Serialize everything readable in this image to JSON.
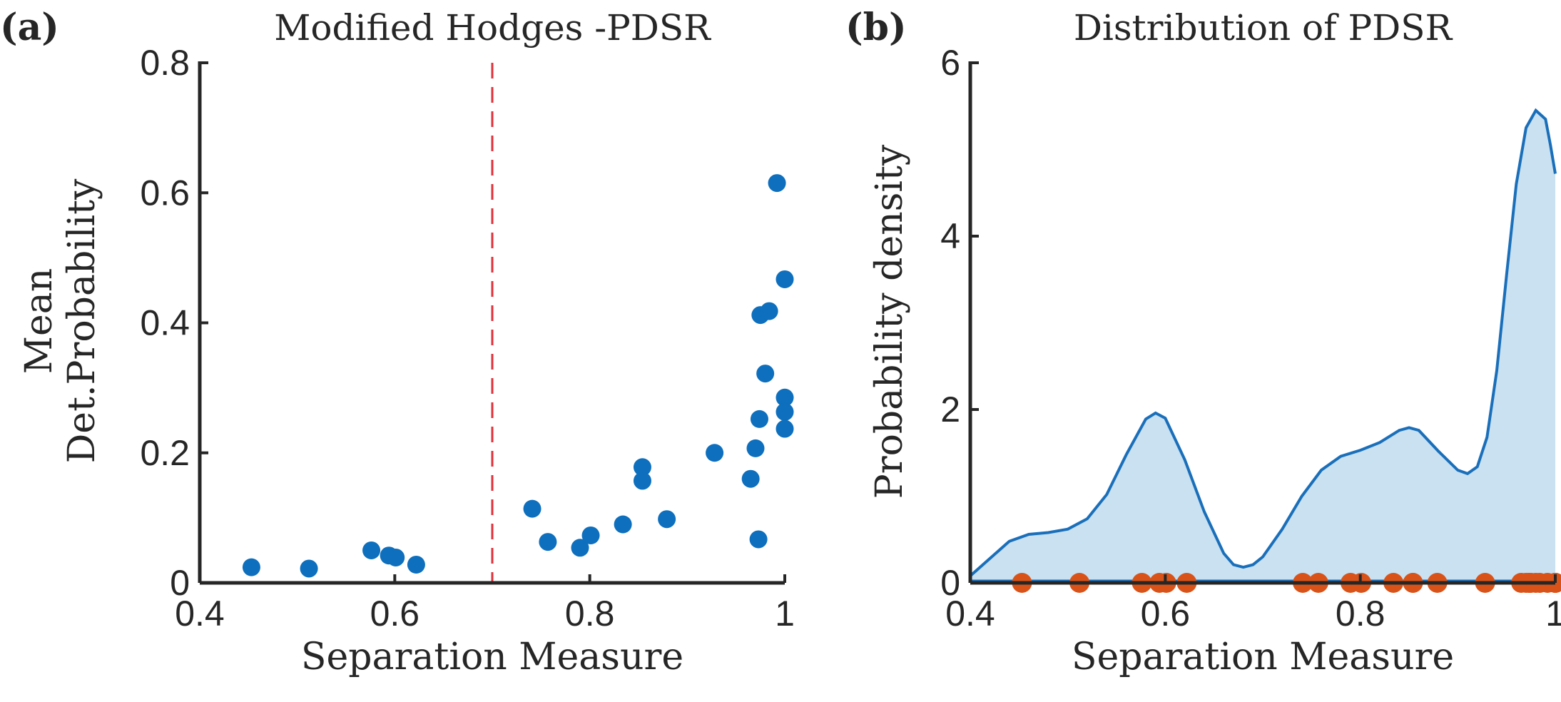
{
  "chart_data": [
    {
      "panel_label": "(a)",
      "type": "scatter",
      "title": "Modified Hodges -PDSR",
      "xlabel": "Separation Measure",
      "ylabel_lines": [
        "Mean",
        "Det.Probability"
      ],
      "xlim": [
        0.4,
        1.0
      ],
      "ylim": [
        0,
        0.8
      ],
      "x_ticks": [
        0.4,
        0.6,
        0.8,
        1.0
      ],
      "y_ticks": [
        0,
        0.2,
        0.4,
        0.6,
        0.8
      ],
      "x_tick_labels": [
        "0.4",
        "0.6",
        "0.8",
        "1"
      ],
      "y_tick_labels": [
        "0",
        "0.2",
        "0.4",
        "0.6",
        "0.8"
      ],
      "grid": false,
      "threshold_line": {
        "x": 0.7,
        "style": "dashed",
        "color": "#e0323a"
      },
      "series": [
        {
          "color": "#0d6fbd",
          "points": [
            [
              0.453,
              0.024
            ],
            [
              0.512,
              0.022
            ],
            [
              0.576,
              0.05
            ],
            [
              0.594,
              0.042
            ],
            [
              0.601,
              0.039
            ],
            [
              0.622,
              0.028
            ],
            [
              0.741,
              0.114
            ],
            [
              0.757,
              0.063
            ],
            [
              0.79,
              0.054
            ],
            [
              0.801,
              0.073
            ],
            [
              0.834,
              0.09
            ],
            [
              0.854,
              0.178
            ],
            [
              0.854,
              0.157
            ],
            [
              0.879,
              0.098
            ],
            [
              0.928,
              0.2
            ],
            [
              0.965,
              0.16
            ],
            [
              0.97,
              0.207
            ],
            [
              0.973,
              0.067
            ],
            [
              0.974,
              0.252
            ],
            [
              0.975,
              0.412
            ],
            [
              0.98,
              0.322
            ],
            [
              0.984,
              0.418
            ],
            [
              0.992,
              0.615
            ],
            [
              1.0,
              0.467
            ],
            [
              1.0,
              0.285
            ],
            [
              1.0,
              0.263
            ],
            [
              1.0,
              0.237
            ]
          ]
        }
      ]
    },
    {
      "panel_label": "(b)",
      "type": "area",
      "title": "Distribution of PDSR",
      "xlabel": "Separation Measure",
      "ylabel": "Probability density",
      "xlim": [
        0.4,
        1.0
      ],
      "ylim": [
        0,
        6
      ],
      "x_ticks": [
        0.4,
        0.6,
        0.8,
        1.0
      ],
      "y_ticks": [
        0,
        2,
        4,
        6
      ],
      "x_tick_labels": [
        "0.4",
        "0.6",
        "0.8",
        "1"
      ],
      "y_tick_labels": [
        "0",
        "2",
        "4",
        "6"
      ],
      "grid": false,
      "density_color": "#1a6fba",
      "fill_color": "#c9e1f1",
      "density_curve": [
        [
          0.4,
          0.08
        ],
        [
          0.42,
          0.28
        ],
        [
          0.44,
          0.48
        ],
        [
          0.46,
          0.56
        ],
        [
          0.48,
          0.58
        ],
        [
          0.5,
          0.62
        ],
        [
          0.52,
          0.74
        ],
        [
          0.54,
          1.02
        ],
        [
          0.56,
          1.48
        ],
        [
          0.58,
          1.89
        ],
        [
          0.59,
          1.96
        ],
        [
          0.6,
          1.9
        ],
        [
          0.62,
          1.42
        ],
        [
          0.64,
          0.82
        ],
        [
          0.66,
          0.34
        ],
        [
          0.67,
          0.21
        ],
        [
          0.68,
          0.18
        ],
        [
          0.69,
          0.21
        ],
        [
          0.7,
          0.3
        ],
        [
          0.72,
          0.62
        ],
        [
          0.74,
          1.0
        ],
        [
          0.76,
          1.3
        ],
        [
          0.78,
          1.46
        ],
        [
          0.8,
          1.53
        ],
        [
          0.82,
          1.62
        ],
        [
          0.84,
          1.76
        ],
        [
          0.85,
          1.79
        ],
        [
          0.86,
          1.76
        ],
        [
          0.88,
          1.52
        ],
        [
          0.9,
          1.3
        ],
        [
          0.91,
          1.26
        ],
        [
          0.92,
          1.34
        ],
        [
          0.93,
          1.68
        ],
        [
          0.94,
          2.45
        ],
        [
          0.95,
          3.55
        ],
        [
          0.96,
          4.6
        ],
        [
          0.97,
          5.25
        ],
        [
          0.98,
          5.45
        ],
        [
          0.99,
          5.35
        ],
        [
          0.995,
          5.05
        ],
        [
          1.0,
          4.72
        ]
      ],
      "rug_color": "#d95319",
      "rug_points": [
        0.453,
        0.512,
        0.576,
        0.594,
        0.601,
        0.622,
        0.741,
        0.757,
        0.79,
        0.801,
        0.834,
        0.854,
        0.854,
        0.879,
        0.928,
        0.965,
        0.97,
        0.973,
        0.974,
        0.975,
        0.98,
        0.984,
        0.992,
        1.0,
        1.0,
        1.0,
        1.0
      ]
    }
  ]
}
